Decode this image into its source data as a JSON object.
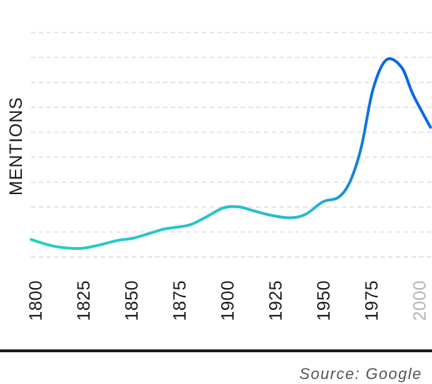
{
  "chart_data": {
    "type": "line",
    "title": "",
    "xlabel": "",
    "ylabel": "MENTIONS",
    "source": "Source: Google",
    "xlim": [
      1800,
      2008
    ],
    "ylim": [
      0,
      9
    ],
    "grid": true,
    "grid_lines": 10,
    "x_ticks": [
      "1800",
      "1825",
      "1850",
      "1875",
      "1900",
      "1925",
      "1950",
      "1975",
      "2000"
    ],
    "series": [
      {
        "x": [
          1800,
          1812,
          1825,
          1835,
          1845,
          1853,
          1862,
          1870,
          1882,
          1890,
          1900,
          1908,
          1915,
          1925,
          1935,
          1943,
          1952,
          1960,
          1966,
          1972,
          1978,
          1985,
          1993,
          1999,
          2008
        ],
        "y": [
          0.7,
          0.43,
          0.34,
          0.47,
          0.66,
          0.75,
          0.95,
          1.13,
          1.27,
          1.55,
          1.96,
          2.01,
          1.87,
          1.67,
          1.57,
          1.71,
          2.21,
          2.39,
          3.0,
          4.4,
          6.7,
          7.9,
          7.6,
          6.5,
          5.2
        ],
        "gradient": [
          "#25d0c2",
          "#2ab8d4",
          "#0a67e0"
        ]
      }
    ]
  }
}
